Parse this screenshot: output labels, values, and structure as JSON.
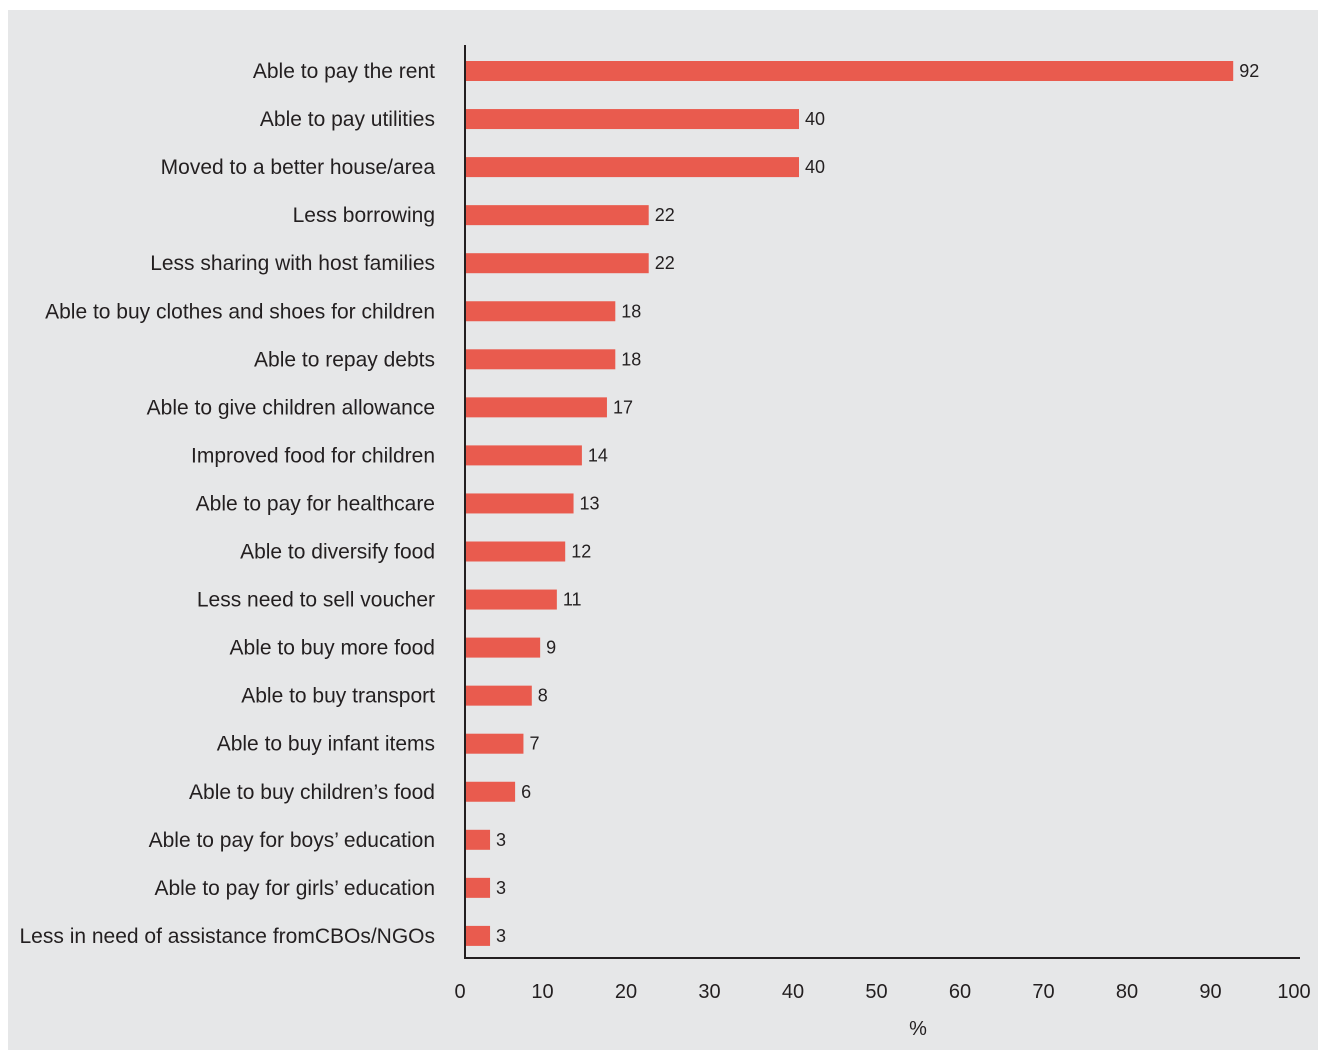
{
  "chart_data": {
    "type": "bar",
    "orientation": "horizontal",
    "categories": [
      "Able to pay the rent",
      "Able to pay utilities",
      "Moved to a better house/area",
      "Less borrowing",
      "Less sharing with host families",
      "Able to buy clothes and shoes for children",
      "Able to repay debts",
      "Able to give children allowance",
      "Improved food for children",
      "Able to pay for healthcare",
      "Able to diversify food",
      "Less need to sell voucher",
      "Able to buy more food",
      "Able to buy transport",
      "Able to buy infant items",
      "Able to buy children’s food",
      "Able to pay for boys’ education",
      "Able to pay for girls’ education",
      "Less in need of assistance fromCBOs/NGOs"
    ],
    "values": [
      92,
      40,
      40,
      22,
      22,
      18,
      18,
      17,
      14,
      13,
      12,
      11,
      9,
      8,
      7,
      6,
      3,
      3,
      3
    ],
    "value_labels": [
      "92",
      "40",
      "40",
      "22",
      "22",
      "18",
      "18",
      "17",
      "14",
      "13",
      "12",
      "11",
      "9",
      "8",
      "7",
      "6",
      "3",
      "3",
      "3"
    ],
    "xlabel": "%",
    "ylabel": "",
    "xlim": [
      0,
      100
    ],
    "xticks": [
      "0",
      "10",
      "20",
      "30",
      "40",
      "50",
      "60",
      "70",
      "80",
      "90",
      "100"
    ],
    "grid": false,
    "bar_color": "#e95b4e",
    "background_color": "#e6e7e8"
  }
}
